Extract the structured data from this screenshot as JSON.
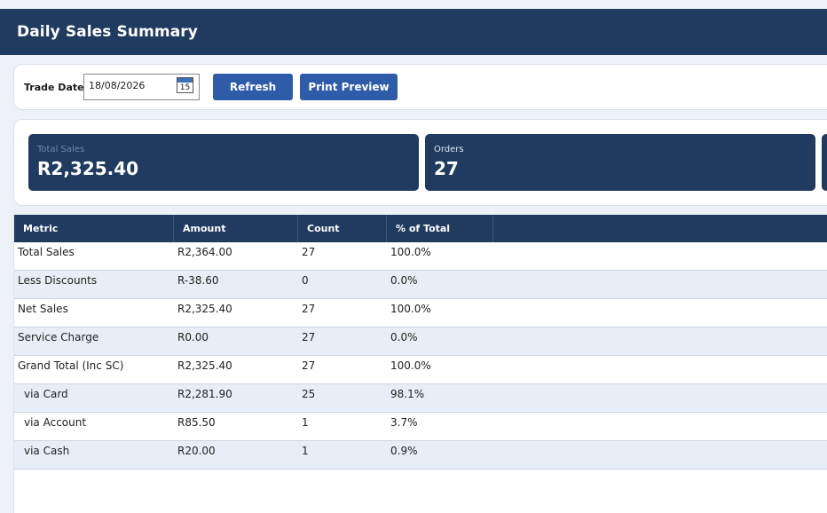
{
  "header": {
    "title": "Daily Sales Summary"
  },
  "toolbar": {
    "trade_date_label": "Trade Date:",
    "trade_date_value": "18/08/2026",
    "calendar_day": "15",
    "refresh_label": "Refresh",
    "print_label": "Print Preview"
  },
  "cards": [
    {
      "label": "Total Sales",
      "value": "R2,325.40"
    },
    {
      "label": "Orders",
      "value": "27"
    }
  ],
  "table": {
    "columns": [
      "Metric",
      "Amount",
      "Count",
      "% of Total"
    ],
    "rows": [
      {
        "metric": "Total Sales",
        "amount": "R2,364.00",
        "count": "27",
        "pct": "100.0%"
      },
      {
        "metric": "Less Discounts",
        "amount": "R-38.60",
        "count": "0",
        "pct": "0.0%"
      },
      {
        "metric": "Net Sales",
        "amount": "R2,325.40",
        "count": "27",
        "pct": "100.0%"
      },
      {
        "metric": "Service Charge",
        "amount": "R0.00",
        "count": "27",
        "pct": "0.0%"
      },
      {
        "metric": "Grand Total (Inc SC)",
        "amount": "R2,325.40",
        "count": "27",
        "pct": "100.0%"
      },
      {
        "metric": "via Card",
        "amount": "R2,281.90",
        "count": "25",
        "pct": "98.1%"
      },
      {
        "metric": "via Account",
        "amount": "R85.50",
        "count": "1",
        "pct": "3.7%"
      },
      {
        "metric": "via Cash",
        "amount": "R20.00",
        "count": "1",
        "pct": "0.9%"
      }
    ]
  },
  "colors": {
    "header_bg": "#213a60",
    "button_bg": "#2f5ca8",
    "row_alt_bg": "#e8eef7"
  }
}
